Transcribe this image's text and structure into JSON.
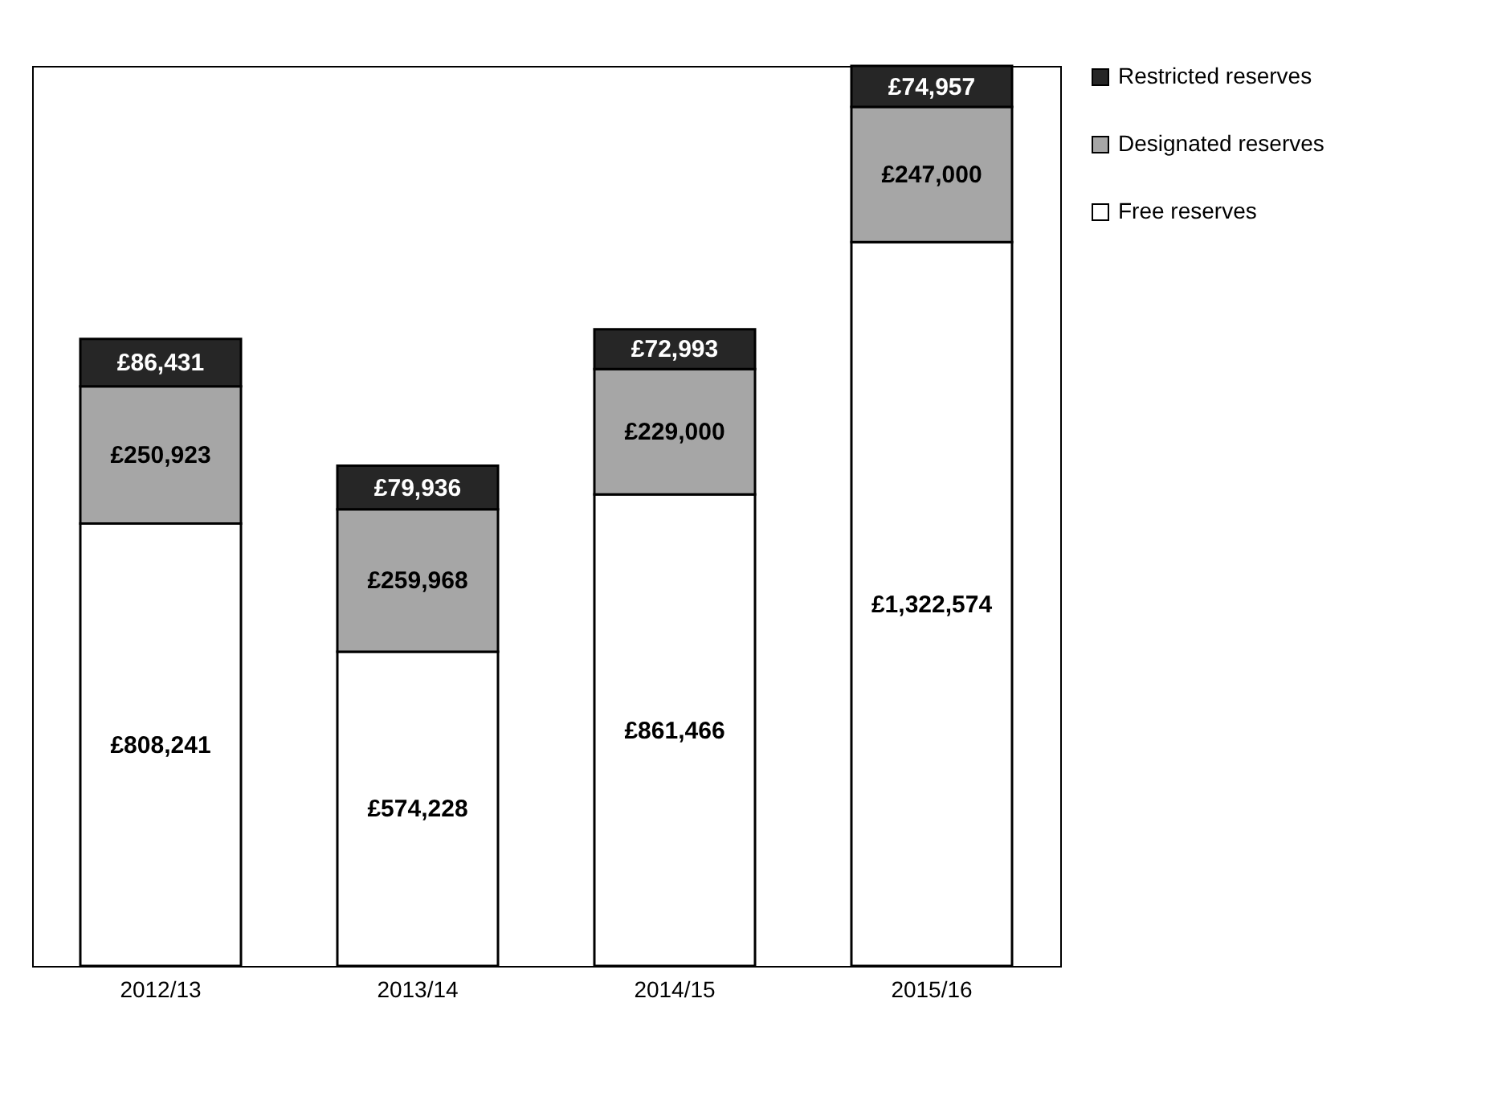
{
  "chart_data": {
    "type": "bar",
    "stacked": true,
    "categories": [
      "2012/13",
      "2013/14",
      "2014/15",
      "2015/16"
    ],
    "legend": "right",
    "series": [
      {
        "name": "Free reserves",
        "color": "#ffffff",
        "values": [
          808241,
          574228,
          861466,
          1322574
        ],
        "value_labels": [
          "£808,241",
          "£574,228",
          "£861,466",
          "£1,322,574"
        ]
      },
      {
        "name": "Designated reserves",
        "color": "#a6a6a6",
        "values": [
          250923,
          259968,
          229000,
          247000
        ],
        "value_labels": [
          "£250,923",
          "£259,968",
          "£229,000",
          "£247,000"
        ]
      },
      {
        "name": "Restricted reserves",
        "color": "#262626",
        "values": [
          86431,
          79936,
          72993,
          74957
        ],
        "value_labels": [
          "£86,431",
          "£79,936",
          "£72,993",
          "£74,957"
        ]
      }
    ]
  }
}
